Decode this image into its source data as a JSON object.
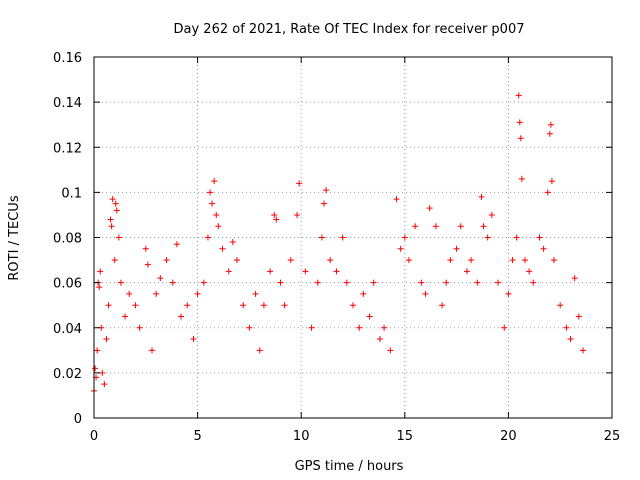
{
  "chart_data": {
    "type": "scatter",
    "title": "Day 262 of 2021, Rate Of TEC Index for receiver p007",
    "xlabel": "GPS time / hours",
    "ylabel": "ROTI / TECUs",
    "xlim": [
      0,
      25
    ],
    "ylim": [
      0,
      0.16
    ],
    "xticks": [
      0,
      5,
      10,
      15,
      20,
      25
    ],
    "yticks": [
      0,
      0.02,
      0.04,
      0.06,
      0.08,
      0.1,
      0.12,
      0.14,
      0.16
    ],
    "xtick_labels": [
      "0",
      "5",
      "10",
      "15",
      "20",
      "25"
    ],
    "ytick_labels": [
      "0",
      "0.02",
      "0.04",
      "0.06",
      "0.08",
      "0.1",
      "0.12",
      "0.14",
      "0.16"
    ],
    "grid": true,
    "marker": "+",
    "color": "#ff0000",
    "series": [
      {
        "points": [
          [
            0.0,
            0.012
          ],
          [
            0.05,
            0.022
          ],
          [
            0.1,
            0.018
          ],
          [
            0.15,
            0.03
          ],
          [
            0.2,
            0.06
          ],
          [
            0.25,
            0.058
          ],
          [
            0.3,
            0.065
          ],
          [
            0.35,
            0.04
          ],
          [
            0.4,
            0.02
          ],
          [
            0.5,
            0.015
          ],
          [
            0.6,
            0.035
          ],
          [
            0.7,
            0.05
          ],
          [
            0.8,
            0.088
          ],
          [
            0.85,
            0.085
          ],
          [
            0.9,
            0.097
          ],
          [
            1.0,
            0.07
          ],
          [
            1.05,
            0.095
          ],
          [
            1.1,
            0.092
          ],
          [
            1.2,
            0.08
          ],
          [
            1.3,
            0.06
          ],
          [
            1.5,
            0.045
          ],
          [
            1.7,
            0.055
          ],
          [
            2.0,
            0.05
          ],
          [
            2.2,
            0.04
          ],
          [
            2.5,
            0.075
          ],
          [
            2.6,
            0.068
          ],
          [
            2.8,
            0.03
          ],
          [
            3.0,
            0.055
          ],
          [
            3.2,
            0.062
          ],
          [
            3.5,
            0.07
          ],
          [
            3.8,
            0.06
          ],
          [
            4.0,
            0.077
          ],
          [
            4.2,
            0.045
          ],
          [
            4.5,
            0.05
          ],
          [
            4.8,
            0.035
          ],
          [
            5.0,
            0.055
          ],
          [
            5.3,
            0.06
          ],
          [
            5.5,
            0.08
          ],
          [
            5.6,
            0.1
          ],
          [
            5.7,
            0.095
          ],
          [
            5.8,
            0.105
          ],
          [
            5.9,
            0.09
          ],
          [
            6.0,
            0.085
          ],
          [
            6.2,
            0.075
          ],
          [
            6.5,
            0.065
          ],
          [
            6.7,
            0.078
          ],
          [
            6.9,
            0.07
          ],
          [
            7.2,
            0.05
          ],
          [
            7.5,
            0.04
          ],
          [
            7.8,
            0.055
          ],
          [
            8.0,
            0.03
          ],
          [
            8.2,
            0.05
          ],
          [
            8.5,
            0.065
          ],
          [
            8.7,
            0.09
          ],
          [
            8.8,
            0.088
          ],
          [
            9.0,
            0.06
          ],
          [
            9.2,
            0.05
          ],
          [
            9.5,
            0.07
          ],
          [
            9.8,
            0.09
          ],
          [
            9.9,
            0.104
          ],
          [
            10.2,
            0.065
          ],
          [
            10.5,
            0.04
          ],
          [
            10.8,
            0.06
          ],
          [
            11.0,
            0.08
          ],
          [
            11.1,
            0.095
          ],
          [
            11.2,
            0.101
          ],
          [
            11.4,
            0.07
          ],
          [
            11.7,
            0.065
          ],
          [
            12.0,
            0.08
          ],
          [
            12.2,
            0.06
          ],
          [
            12.5,
            0.05
          ],
          [
            12.8,
            0.04
          ],
          [
            13.0,
            0.055
          ],
          [
            13.3,
            0.045
          ],
          [
            13.5,
            0.06
          ],
          [
            13.8,
            0.035
          ],
          [
            14.0,
            0.04
          ],
          [
            14.3,
            0.03
          ],
          [
            14.6,
            0.097
          ],
          [
            14.8,
            0.075
          ],
          [
            15.0,
            0.08
          ],
          [
            15.2,
            0.07
          ],
          [
            15.5,
            0.085
          ],
          [
            15.8,
            0.06
          ],
          [
            16.0,
            0.055
          ],
          [
            16.2,
            0.093
          ],
          [
            16.5,
            0.085
          ],
          [
            16.8,
            0.05
          ],
          [
            17.0,
            0.06
          ],
          [
            17.2,
            0.07
          ],
          [
            17.5,
            0.075
          ],
          [
            17.7,
            0.085
          ],
          [
            18.0,
            0.065
          ],
          [
            18.2,
            0.07
          ],
          [
            18.5,
            0.06
          ],
          [
            18.7,
            0.098
          ],
          [
            18.8,
            0.085
          ],
          [
            19.0,
            0.08
          ],
          [
            19.2,
            0.09
          ],
          [
            19.5,
            0.06
          ],
          [
            19.8,
            0.04
          ],
          [
            20.0,
            0.055
          ],
          [
            20.2,
            0.07
          ],
          [
            20.4,
            0.08
          ],
          [
            20.5,
            0.143
          ],
          [
            20.55,
            0.131
          ],
          [
            20.6,
            0.124
          ],
          [
            20.65,
            0.106
          ],
          [
            20.8,
            0.07
          ],
          [
            21.0,
            0.065
          ],
          [
            21.2,
            0.06
          ],
          [
            21.5,
            0.08
          ],
          [
            21.7,
            0.075
          ],
          [
            21.9,
            0.1
          ],
          [
            22.0,
            0.126
          ],
          [
            22.05,
            0.13
          ],
          [
            22.1,
            0.105
          ],
          [
            22.2,
            0.07
          ],
          [
            22.5,
            0.05
          ],
          [
            22.8,
            0.04
          ],
          [
            23.0,
            0.035
          ],
          [
            23.2,
            0.062
          ],
          [
            23.4,
            0.045
          ],
          [
            23.6,
            0.03
          ]
        ]
      }
    ]
  }
}
